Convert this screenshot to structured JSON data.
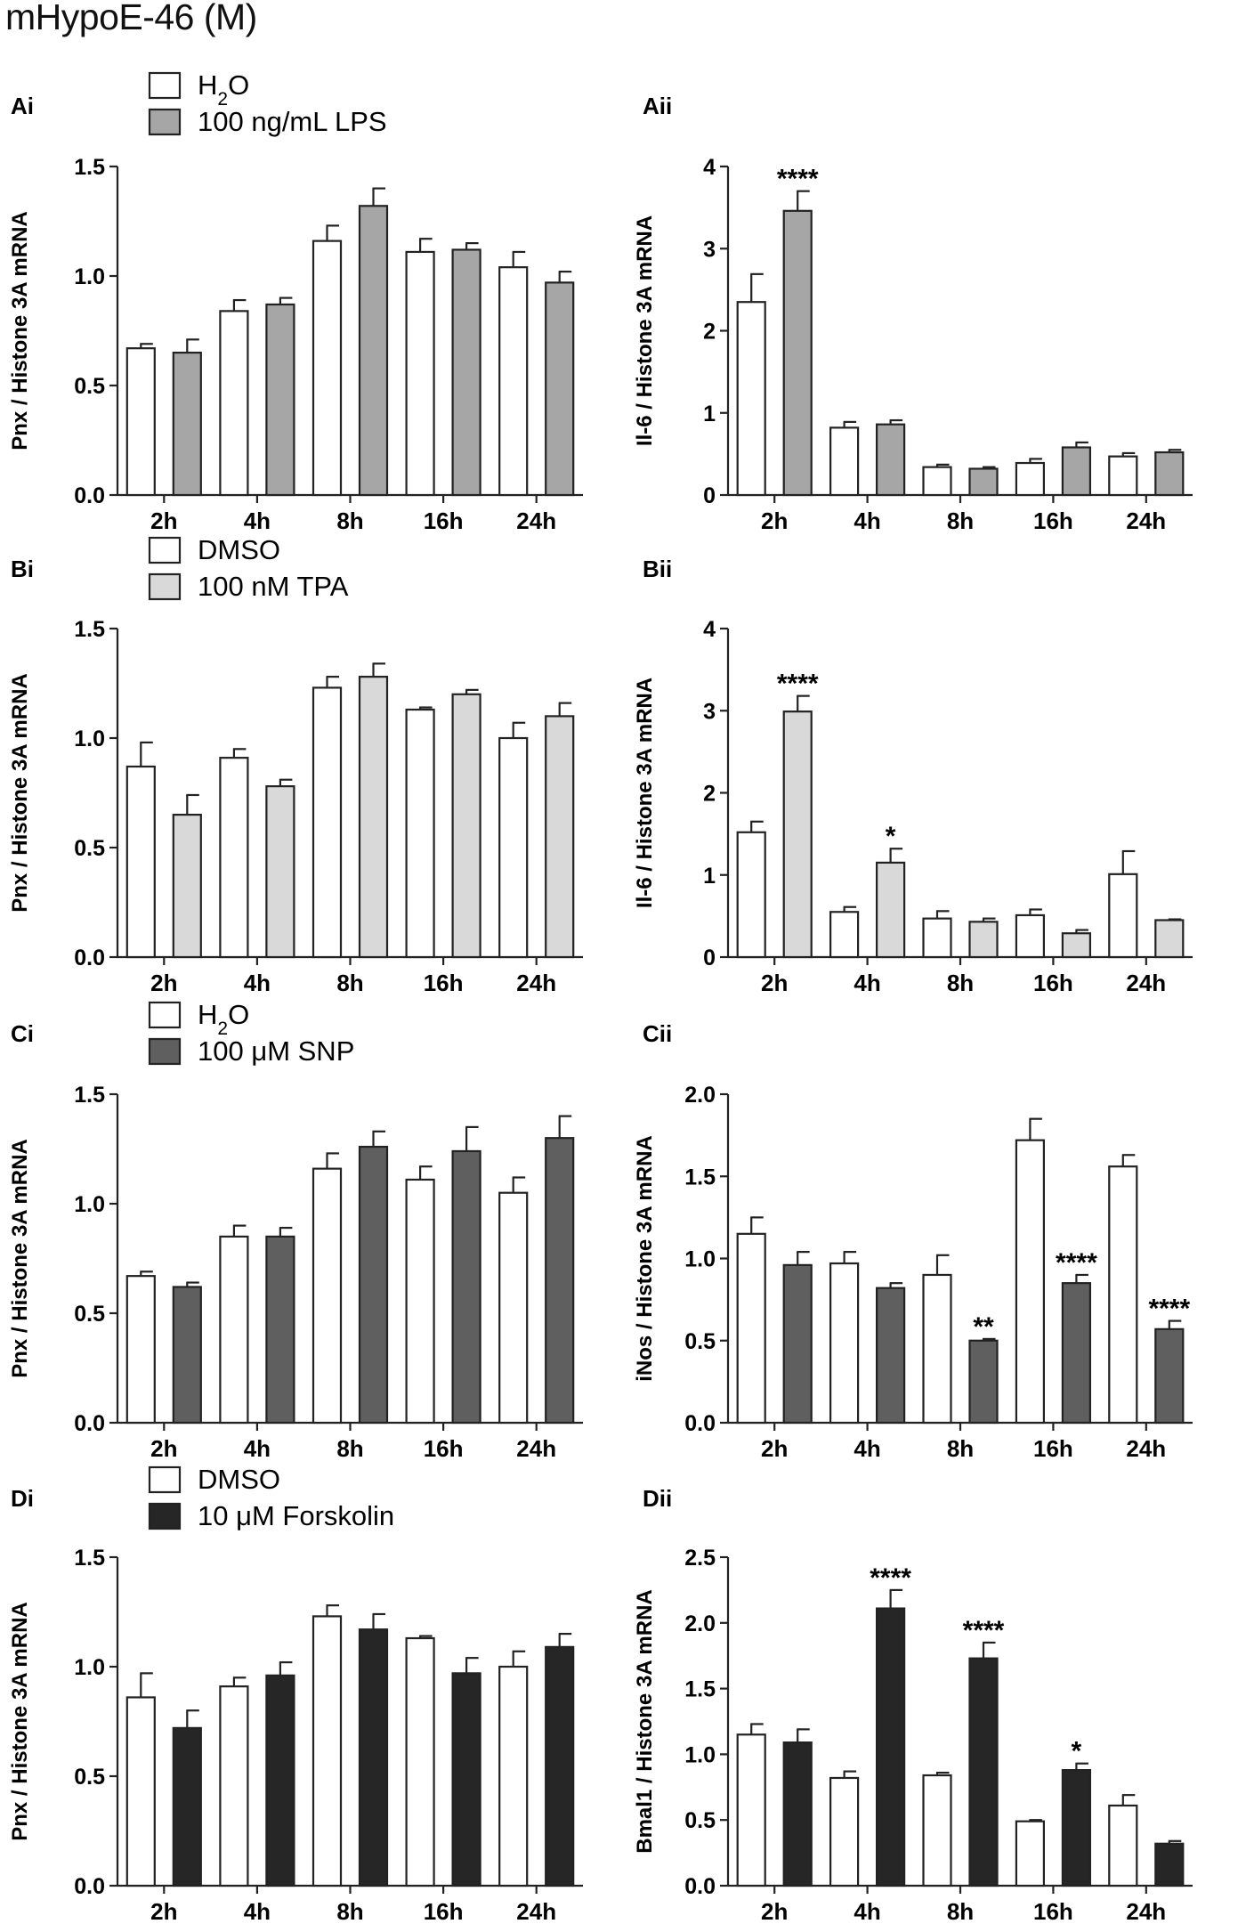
{
  "figure_title": "mHypoE-46 (M)",
  "chart_data": [
    {
      "panel": "Ai",
      "type": "bar",
      "categories": [
        "2h",
        "4h",
        "8h",
        "16h",
        "24h"
      ],
      "ylabel": "Pnx / Histone 3A mRNA",
      "ylim": [
        0,
        1.5
      ],
      "yticks": [
        "0.0",
        "0.5",
        "1.0",
        "1.5"
      ],
      "ytick_values": [
        0,
        0.5,
        1.0,
        1.5
      ],
      "legend": {
        "entries": [
          "H",
          "2",
          "O",
          "100 ng/mL LPS"
        ]
      },
      "series": [
        {
          "name": "H2O",
          "color": "#ffffff",
          "values": [
            0.67,
            0.84,
            1.16,
            1.11,
            1.04
          ],
          "errors": [
            0.02,
            0.05,
            0.07,
            0.06,
            0.07
          ]
        },
        {
          "name": "100 ng/mL LPS",
          "color": "#a6a6a6",
          "values": [
            0.65,
            0.87,
            1.32,
            1.12,
            0.97
          ],
          "errors": [
            0.06,
            0.03,
            0.08,
            0.03,
            0.05
          ]
        }
      ],
      "annotations": [
        "",
        "",
        "",
        "",
        ""
      ]
    },
    {
      "panel": "Aii",
      "type": "bar",
      "categories": [
        "2h",
        "4h",
        "8h",
        "16h",
        "24h"
      ],
      "ylabel": "Il-6 / Histone 3A mRNA",
      "ylim": [
        0,
        4
      ],
      "yticks": [
        "0",
        "1",
        "2",
        "3",
        "4"
      ],
      "ytick_values": [
        0,
        1,
        2,
        3,
        4
      ],
      "series": [
        {
          "name": "H2O",
          "color": "#ffffff",
          "values": [
            2.35,
            0.82,
            0.34,
            0.39,
            0.47
          ],
          "errors": [
            0.34,
            0.07,
            0.03,
            0.05,
            0.04
          ]
        },
        {
          "name": "100 ng/mL LPS",
          "color": "#a6a6a6",
          "values": [
            3.46,
            0.86,
            0.32,
            0.58,
            0.52
          ],
          "errors": [
            0.24,
            0.05,
            0.02,
            0.06,
            0.03
          ]
        }
      ],
      "annotations": [
        "****",
        "",
        "",
        "",
        ""
      ]
    },
    {
      "panel": "Bi",
      "type": "bar",
      "categories": [
        "2h",
        "4h",
        "8h",
        "16h",
        "24h"
      ],
      "ylabel": "Pnx / Histone 3A mRNA",
      "ylim": [
        0,
        1.5
      ],
      "yticks": [
        "0.0",
        "0.5",
        "1.0",
        "1.5"
      ],
      "ytick_values": [
        0,
        0.5,
        1.0,
        1.5
      ],
      "legend": {
        "entries": [
          "DMSO",
          "100 nM TPA"
        ]
      },
      "series": [
        {
          "name": "DMSO",
          "color": "#ffffff",
          "values": [
            0.87,
            0.91,
            1.23,
            1.13,
            1.0
          ],
          "errors": [
            0.11,
            0.04,
            0.05,
            0.01,
            0.07
          ]
        },
        {
          "name": "100 nM TPA",
          "color": "#d9d9d9",
          "values": [
            0.65,
            0.78,
            1.28,
            1.2,
            1.1
          ],
          "errors": [
            0.09,
            0.03,
            0.06,
            0.02,
            0.06
          ]
        }
      ],
      "annotations": [
        "",
        "",
        "",
        "",
        ""
      ]
    },
    {
      "panel": "Bii",
      "type": "bar",
      "categories": [
        "2h",
        "4h",
        "8h",
        "16h",
        "24h"
      ],
      "ylabel": "Il-6 / Histone 3A mRNA",
      "ylim": [
        0,
        4
      ],
      "yticks": [
        "0",
        "1",
        "2",
        "3",
        "4"
      ],
      "ytick_values": [
        0,
        1,
        2,
        3,
        4
      ],
      "series": [
        {
          "name": "DMSO",
          "color": "#ffffff",
          "values": [
            1.52,
            0.55,
            0.47,
            0.51,
            1.01
          ],
          "errors": [
            0.13,
            0.06,
            0.09,
            0.07,
            0.28
          ]
        },
        {
          "name": "100 nM TPA",
          "color": "#d9d9d9",
          "values": [
            2.99,
            1.15,
            0.43,
            0.29,
            0.45
          ],
          "errors": [
            0.19,
            0.17,
            0.04,
            0.04,
            0.01
          ]
        }
      ],
      "annotations": [
        "****",
        "*",
        "",
        "",
        ""
      ]
    },
    {
      "panel": "Ci",
      "type": "bar",
      "categories": [
        "2h",
        "4h",
        "8h",
        "16h",
        "24h"
      ],
      "ylabel": "Pnx / Histone 3A mRNA",
      "ylim": [
        0,
        1.5
      ],
      "yticks": [
        "0.0",
        "0.5",
        "1.0",
        "1.5"
      ],
      "ytick_values": [
        0,
        0.5,
        1.0,
        1.5
      ],
      "legend": {
        "entries": [
          "H",
          "2",
          "O",
          "100 μM SNP"
        ]
      },
      "series": [
        {
          "name": "H2O",
          "color": "#ffffff",
          "values": [
            0.67,
            0.85,
            1.16,
            1.11,
            1.05
          ],
          "errors": [
            0.02,
            0.05,
            0.07,
            0.06,
            0.07
          ]
        },
        {
          "name": "100 μM SNP",
          "color": "#5f5f5f",
          "values": [
            0.62,
            0.85,
            1.26,
            1.24,
            1.3
          ],
          "errors": [
            0.02,
            0.04,
            0.07,
            0.11,
            0.1
          ]
        }
      ],
      "annotations": [
        "",
        "",
        "",
        "",
        ""
      ]
    },
    {
      "panel": "Cii",
      "type": "bar",
      "categories": [
        "2h",
        "4h",
        "8h",
        "16h",
        "24h"
      ],
      "ylabel": "iNos / Histone 3A mRNA",
      "ylim": [
        0,
        2.0
      ],
      "yticks": [
        "0.0",
        "0.5",
        "1.0",
        "1.5",
        "2.0"
      ],
      "ytick_values": [
        0,
        0.5,
        1.0,
        1.5,
        2.0
      ],
      "series": [
        {
          "name": "H2O",
          "color": "#ffffff",
          "values": [
            1.15,
            0.97,
            0.9,
            1.72,
            1.56
          ],
          "errors": [
            0.1,
            0.07,
            0.12,
            0.13,
            0.07
          ]
        },
        {
          "name": "100 μM SNP",
          "color": "#5f5f5f",
          "values": [
            0.96,
            0.82,
            0.5,
            0.85,
            0.57
          ],
          "errors": [
            0.08,
            0.03,
            0.01,
            0.05,
            0.05
          ]
        }
      ],
      "annotations": [
        "",
        "",
        "**",
        "****",
        "****"
      ]
    },
    {
      "panel": "Di",
      "type": "bar",
      "categories": [
        "2h",
        "4h",
        "8h",
        "16h",
        "24h"
      ],
      "ylabel": "Pnx / Histone 3A mRNA",
      "ylim": [
        0,
        1.5
      ],
      "yticks": [
        "0.0",
        "0.5",
        "1.0",
        "1.5"
      ],
      "ytick_values": [
        0,
        0.5,
        1.0,
        1.5
      ],
      "legend": {
        "entries": [
          "DMSO",
          "10 μM Forskolin"
        ]
      },
      "series": [
        {
          "name": "DMSO",
          "color": "#ffffff",
          "values": [
            0.86,
            0.91,
            1.23,
            1.13,
            1.0
          ],
          "errors": [
            0.11,
            0.04,
            0.05,
            0.01,
            0.07
          ]
        },
        {
          "name": "10 μM Forskolin",
          "color": "#262626",
          "values": [
            0.72,
            0.96,
            1.17,
            0.97,
            1.09
          ],
          "errors": [
            0.08,
            0.06,
            0.07,
            0.07,
            0.06
          ]
        }
      ],
      "annotations": [
        "",
        "",
        "",
        "",
        ""
      ]
    },
    {
      "panel": "Dii",
      "type": "bar",
      "categories": [
        "2h",
        "4h",
        "8h",
        "16h",
        "24h"
      ],
      "ylabel": "Bmal1 / Histone 3A mRNA",
      "ylim": [
        0,
        2.5
      ],
      "yticks": [
        "0.0",
        "0.5",
        "1.0",
        "1.5",
        "2.0",
        "2.5"
      ],
      "ytick_values": [
        0,
        0.5,
        1.0,
        1.5,
        2.0,
        2.5
      ],
      "series": [
        {
          "name": "DMSO",
          "color": "#ffffff",
          "values": [
            1.15,
            0.82,
            0.84,
            0.49,
            0.61
          ],
          "errors": [
            0.08,
            0.05,
            0.02,
            0.01,
            0.08
          ]
        },
        {
          "name": "10 μM Forskolin",
          "color": "#262626",
          "values": [
            1.09,
            2.11,
            1.73,
            0.88,
            0.32
          ],
          "errors": [
            0.1,
            0.14,
            0.12,
            0.05,
            0.02
          ]
        }
      ],
      "annotations": [
        "",
        "****",
        "****",
        "*",
        ""
      ]
    }
  ]
}
